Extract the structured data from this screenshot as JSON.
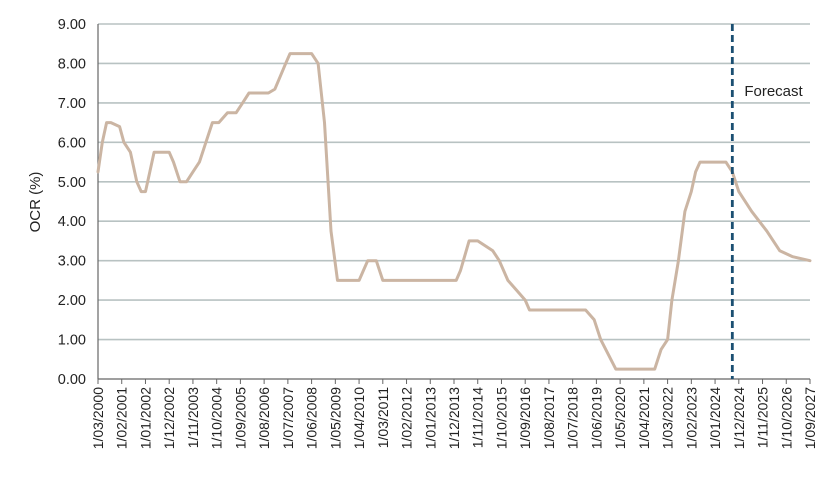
{
  "chart_data": {
    "type": "line",
    "ylabel": "OCR (%)",
    "ylim": [
      0,
      9
    ],
    "yticks": [
      "0.00",
      "1.00",
      "2.00",
      "3.00",
      "4.00",
      "5.00",
      "6.00",
      "7.00",
      "8.00",
      "9.00"
    ],
    "xtick_labels": [
      "1/03/2000",
      "1/02/2001",
      "1/01/2002",
      "1/12/2002",
      "1/11/2003",
      "1/10/2004",
      "1/09/2005",
      "1/08/2006",
      "1/07/2007",
      "1/06/2008",
      "1/05/2009",
      "1/04/2010",
      "1/03/2011",
      "1/02/2012",
      "1/01/2013",
      "1/12/2013",
      "1/11/2014",
      "1/10/2015",
      "1/09/2016",
      "1/08/2017",
      "1/07/2018",
      "1/06/2019",
      "1/05/2020",
      "1/04/2021",
      "1/03/2022",
      "1/02/2023",
      "1/01/2024",
      "1/12/2024",
      "1/11/2025",
      "1/10/2026",
      "1/09/2027"
    ],
    "xlim": [
      "2000-03",
      "2027-09"
    ],
    "grid": "horizontal",
    "series": [
      {
        "color": "#cbb5a3",
        "points": [
          [
            "2000-03",
            5.25
          ],
          [
            "2000-05",
            6.0
          ],
          [
            "2000-07",
            6.5
          ],
          [
            "2000-09",
            6.5
          ],
          [
            "2001-01",
            6.4
          ],
          [
            "2001-03",
            6.0
          ],
          [
            "2001-06",
            5.75
          ],
          [
            "2001-09",
            5.0
          ],
          [
            "2001-11",
            4.75
          ],
          [
            "2002-01",
            4.75
          ],
          [
            "2002-03",
            5.25
          ],
          [
            "2002-05",
            5.75
          ],
          [
            "2002-09",
            5.75
          ],
          [
            "2002-12",
            5.75
          ],
          [
            "2003-02",
            5.5
          ],
          [
            "2003-05",
            5.0
          ],
          [
            "2003-08",
            5.0
          ],
          [
            "2003-11",
            5.25
          ],
          [
            "2004-02",
            5.5
          ],
          [
            "2004-05",
            6.0
          ],
          [
            "2004-08",
            6.5
          ],
          [
            "2004-11",
            6.5
          ],
          [
            "2005-03",
            6.75
          ],
          [
            "2005-07",
            6.75
          ],
          [
            "2005-10",
            7.0
          ],
          [
            "2006-01",
            7.25
          ],
          [
            "2006-06",
            7.25
          ],
          [
            "2006-10",
            7.25
          ],
          [
            "2007-01",
            7.35
          ],
          [
            "2007-06",
            8.0
          ],
          [
            "2007-08",
            8.25
          ],
          [
            "2007-11",
            8.25
          ],
          [
            "2008-06",
            8.25
          ],
          [
            "2008-09",
            8.0
          ],
          [
            "2008-12",
            6.5
          ],
          [
            "2009-03",
            3.75
          ],
          [
            "2009-06",
            2.5
          ],
          [
            "2009-09",
            2.5
          ],
          [
            "2010-01",
            2.5
          ],
          [
            "2010-04",
            2.5
          ],
          [
            "2010-06",
            2.75
          ],
          [
            "2010-08",
            3.0
          ],
          [
            "2010-12",
            3.0
          ],
          [
            "2011-03",
            2.5
          ],
          [
            "2011-06",
            2.5
          ],
          [
            "2012-01",
            2.5
          ],
          [
            "2013-01",
            2.5
          ],
          [
            "2013-09",
            2.5
          ],
          [
            "2014-01",
            2.5
          ],
          [
            "2014-03",
            2.75
          ],
          [
            "2014-07",
            3.5
          ],
          [
            "2014-11",
            3.5
          ],
          [
            "2015-06",
            3.25
          ],
          [
            "2015-09",
            3.0
          ],
          [
            "2016-01",
            2.5
          ],
          [
            "2016-05",
            2.25
          ],
          [
            "2016-09",
            2.0
          ],
          [
            "2016-11",
            1.75
          ],
          [
            "2017-02",
            1.75
          ],
          [
            "2018-01",
            1.75
          ],
          [
            "2019-01",
            1.75
          ],
          [
            "2019-05",
            1.5
          ],
          [
            "2019-08",
            1.0
          ],
          [
            "2020-03",
            0.25
          ],
          [
            "2021-01",
            0.25
          ],
          [
            "2021-09",
            0.25
          ],
          [
            "2021-12",
            0.75
          ],
          [
            "2022-03",
            1.0
          ],
          [
            "2022-05",
            2.0
          ],
          [
            "2022-08",
            3.0
          ],
          [
            "2022-11",
            4.25
          ],
          [
            "2023-02",
            4.75
          ],
          [
            "2023-04",
            5.25
          ],
          [
            "2023-06",
            5.5
          ],
          [
            "2024-06",
            5.5
          ],
          [
            "2024-09",
            5.25
          ],
          [
            "2024-12",
            4.75
          ],
          [
            "2025-06",
            4.25
          ],
          [
            "2026-01",
            3.75
          ],
          [
            "2026-07",
            3.25
          ],
          [
            "2027-01",
            3.1
          ],
          [
            "2027-09",
            3.0
          ]
        ]
      }
    ],
    "annotations": [
      {
        "type": "vline",
        "x": "2024-09",
        "color": "#1b4f72",
        "style": "dashed",
        "text": "Forecast"
      }
    ]
  }
}
